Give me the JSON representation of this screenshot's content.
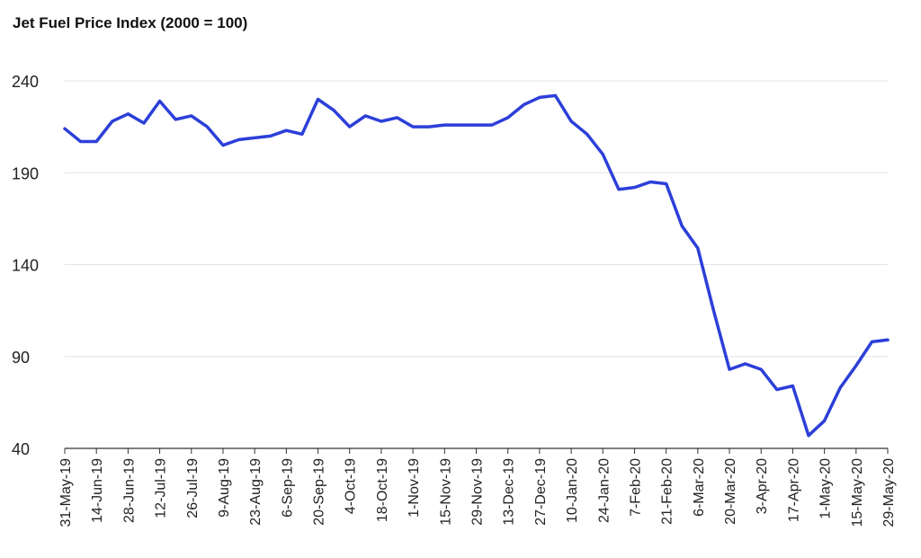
{
  "chart_data": {
    "type": "line",
    "title": "Jet Fuel Price Index (2000 = 100)",
    "xlabel": "",
    "ylabel": "",
    "ylim": [
      40,
      240
    ],
    "y_ticks": [
      40,
      90,
      140,
      190,
      240
    ],
    "x_tick_labels": [
      "31-May-19",
      "14-Jun-19",
      "28-Jun-19",
      "12-Jul-19",
      "26-Jul-19",
      "9-Aug-19",
      "23-Aug-19",
      "6-Sep-19",
      "20-Sep-19",
      "4-Oct-19",
      "18-Oct-19",
      "1-Nov-19",
      "15-Nov-19",
      "29-Nov-19",
      "13-Dec-19",
      "27-Dec-19",
      "10-Jan-20",
      "24-Jan-20",
      "7-Feb-20",
      "21-Feb-20",
      "6-Mar-20",
      "20-Mar-20",
      "3-Apr-20",
      "17-Apr-20",
      "1-May-20",
      "15-May-20",
      "29-May-20"
    ],
    "grid": true,
    "legend": "none",
    "series": [
      {
        "color": "#2c3fd9",
        "values": [
          214,
          207,
          207,
          218,
          222,
          217,
          229,
          219,
          221,
          215,
          205,
          208,
          209,
          210,
          213,
          211,
          230,
          224,
          215,
          221,
          218,
          220,
          215,
          215,
          216,
          216,
          216,
          216,
          220,
          227,
          231,
          232,
          218,
          211,
          200,
          181,
          182,
          185,
          184,
          161,
          149,
          115,
          83,
          86,
          83,
          72,
          74,
          47,
          55,
          73,
          85,
          98,
          99
        ]
      }
    ]
  }
}
